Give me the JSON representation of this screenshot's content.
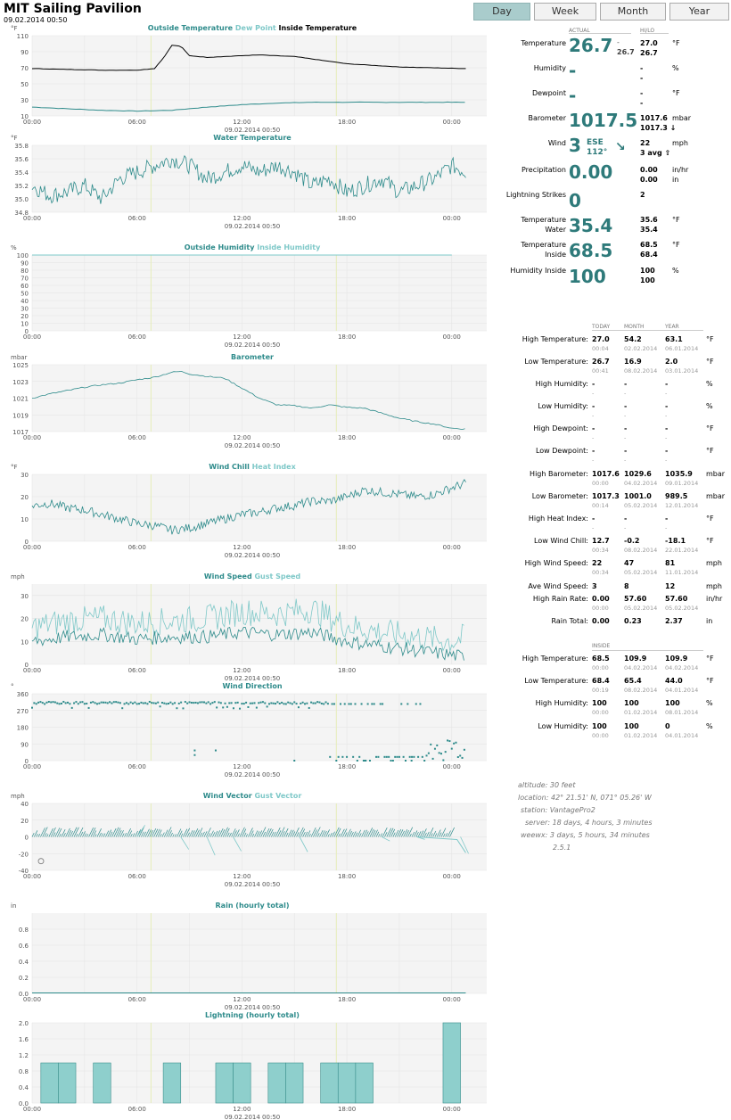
{
  "header": {
    "title": "MIT Sailing Pavilion",
    "date": "09.02.2014 00:50"
  },
  "tabs": [
    {
      "label": "Day",
      "active": true
    },
    {
      "label": "Week"
    },
    {
      "label": "Month"
    },
    {
      "label": "Year"
    }
  ],
  "colors": {
    "teal": "#2e8b8b",
    "light_teal": "#7ec8c8",
    "black_line": "#000000",
    "grid_bg": "#f4f4f4",
    "day_marker": "#e6edb9"
  },
  "x_ticks": [
    "00:00",
    "06:00",
    "12:00",
    "18:00",
    "00:00"
  ],
  "chart_timestamp": "09.02.2014 00:50",
  "chart_data": [
    {
      "type": "line",
      "title_parts": [
        {
          "text": "Outside Temperature",
          "color": "#2e8b8b"
        },
        {
          "text": "Dew Point",
          "color": "#7ec8c8"
        },
        {
          "text": "Inside Temperature",
          "color": "#000000"
        }
      ],
      "ylabel": "°F",
      "yticks": [
        10,
        30,
        50,
        70,
        90,
        110
      ],
      "ylim": [
        10,
        110
      ],
      "series": [
        {
          "name": "Outside Temperature",
          "x": [
            0,
            2,
            4,
            6,
            8,
            10,
            12,
            14,
            16,
            18,
            20,
            22,
            24.8
          ],
          "y": [
            21,
            19,
            17,
            16,
            17,
            21,
            24,
            26,
            27,
            27,
            27,
            27,
            27
          ]
        },
        {
          "name": "Inside Temperature",
          "x": [
            0,
            2,
            4,
            6,
            7,
            7.5,
            8,
            8.5,
            9,
            10,
            12,
            13,
            15,
            18,
            21,
            24.8
          ],
          "y": [
            69,
            68,
            67,
            67,
            69,
            82,
            98,
            97,
            85,
            83,
            85,
            86,
            84,
            75,
            71,
            69
          ]
        }
      ]
    },
    {
      "type": "line",
      "title_parts": [
        {
          "text": "Water Temperature",
          "color": "#2e8b8b"
        }
      ],
      "ylabel": "°F",
      "yticks": [
        34.8,
        35.0,
        35.2,
        35.4,
        35.6,
        35.8
      ],
      "ylim": [
        34.8,
        35.8
      ],
      "series": [
        {
          "name": "Water Temperature",
          "x": [
            0,
            1,
            2,
            3,
            4,
            5,
            6,
            7,
            8,
            9,
            10,
            11,
            12,
            13,
            14,
            15,
            16,
            17,
            18,
            19,
            20,
            21,
            22,
            23,
            24,
            24.8
          ],
          "y": [
            35.2,
            35.05,
            35.1,
            35.2,
            35.0,
            35.3,
            35.4,
            35.5,
            35.6,
            35.5,
            35.3,
            35.4,
            35.5,
            35.4,
            35.5,
            35.4,
            35.2,
            35.3,
            35.1,
            35.2,
            35.3,
            35.1,
            35.2,
            35.3,
            35.5,
            35.4
          ]
        }
      ]
    },
    {
      "type": "line",
      "title_parts": [
        {
          "text": "Outside Humidity",
          "color": "#2e8b8b"
        },
        {
          "text": "Inside Humidity",
          "color": "#7ec8c8"
        }
      ],
      "ylabel": "%",
      "yticks": [
        0,
        10,
        20,
        30,
        40,
        50,
        60,
        70,
        80,
        90,
        100
      ],
      "ylim": [
        0,
        100
      ],
      "series": [
        {
          "name": "Inside Humidity",
          "x": [
            0,
            24.8
          ],
          "y": [
            100,
            100
          ]
        }
      ]
    },
    {
      "type": "line",
      "title_parts": [
        {
          "text": "Barometer",
          "color": "#2e8b8b"
        }
      ],
      "ylabel": "mbar",
      "yticks": [
        1017,
        1019,
        1021,
        1023,
        1025
      ],
      "ylim": [
        1017,
        1025
      ],
      "series": [
        {
          "name": "Barometer",
          "x": [
            0,
            1,
            2,
            3,
            4,
            5,
            6,
            7,
            8,
            8.5,
            9,
            10,
            11,
            12,
            13,
            14,
            15,
            16,
            17,
            18,
            19,
            20,
            21,
            22,
            23,
            24,
            24.8
          ],
          "y": [
            1021.0,
            1021.5,
            1021.9,
            1022.3,
            1022.6,
            1022.8,
            1023.2,
            1023.5,
            1024.1,
            1024.2,
            1023.9,
            1023.6,
            1023.4,
            1022.2,
            1021.0,
            1020.2,
            1020.1,
            1019.8,
            1020.2,
            1019.9,
            1019.8,
            1019.2,
            1018.6,
            1018.2,
            1017.9,
            1017.4,
            1017.3
          ]
        }
      ]
    },
    {
      "type": "line",
      "title_parts": [
        {
          "text": "Wind Chill",
          "color": "#2e8b8b"
        },
        {
          "text": "Heat Index",
          "color": "#7ec8c8"
        }
      ],
      "ylabel": "°F",
      "yticks": [
        0,
        10,
        20,
        30
      ],
      "ylim": [
        0,
        30
      ],
      "series": [
        {
          "name": "Wind Chill",
          "x": [
            0,
            1,
            2,
            3,
            4,
            5,
            6,
            7,
            8,
            9,
            10,
            11,
            12,
            13,
            14,
            15,
            16,
            17,
            18,
            19,
            20,
            21,
            22,
            23,
            24,
            24.8
          ],
          "y": [
            16,
            17,
            15,
            14,
            12,
            10,
            8,
            7,
            5,
            6,
            8,
            10,
            12,
            13,
            15,
            16,
            18,
            18,
            20,
            23,
            22,
            21,
            20,
            21,
            24,
            26
          ]
        }
      ]
    },
    {
      "type": "line",
      "title_parts": [
        {
          "text": "Wind Speed",
          "color": "#2e8b8b"
        },
        {
          "text": "Gust Speed",
          "color": "#7ec8c8"
        }
      ],
      "ylabel": "mph",
      "yticks": [
        0,
        10,
        20,
        30
      ],
      "ylim": [
        0,
        35
      ],
      "series": [
        {
          "name": "Wind Speed",
          "x": [
            0,
            2,
            4,
            6,
            8,
            10,
            12,
            14,
            16,
            18,
            20,
            22,
            24,
            24.8
          ],
          "y": [
            10,
            12,
            13,
            11,
            12,
            12,
            14,
            13,
            14,
            10,
            8,
            6,
            4,
            3
          ]
        },
        {
          "name": "Gust Speed",
          "x": [
            0,
            2,
            4,
            6,
            8,
            10,
            12,
            14,
            16,
            18,
            20,
            22,
            24,
            24.8
          ],
          "y": [
            16,
            19,
            20,
            18,
            19,
            20,
            23,
            22,
            24,
            17,
            14,
            12,
            10,
            12
          ]
        }
      ]
    },
    {
      "type": "scatter",
      "title_parts": [
        {
          "text": "Wind Direction",
          "color": "#2e8b8b"
        }
      ],
      "ylabel": "°",
      "yticks": [
        0,
        90,
        180,
        270,
        360
      ],
      "ylim": [
        0,
        360
      ]
    },
    {
      "type": "line",
      "title_parts": [
        {
          "text": "Wind Vector",
          "color": "#2e8b8b"
        },
        {
          "text": "Gust Vector",
          "color": "#7ec8c8"
        }
      ],
      "ylabel": "mph",
      "yticks": [
        -40,
        -20,
        0,
        20,
        40
      ],
      "ylim": [
        -40,
        40
      ]
    },
    {
      "type": "line",
      "title_parts": [
        {
          "text": "Rain (hourly total)",
          "color": "#2e8b8b"
        }
      ],
      "ylabel": "in",
      "yticks": [
        0.0,
        0.2,
        0.4,
        0.6,
        0.8
      ],
      "ylim": [
        0,
        1.0
      ]
    },
    {
      "type": "bar",
      "title_parts": [
        {
          "text": "Lightning (hourly total)",
          "color": "#2e8b8b"
        }
      ],
      "ylabel": "",
      "yticks": [
        0.0,
        0.4,
        0.8,
        1.2,
        1.6,
        2.0
      ],
      "ylim": [
        0,
        2.0
      ],
      "bars": [
        {
          "hour": 1,
          "value": 1
        },
        {
          "hour": 2,
          "value": 1
        },
        {
          "hour": 4,
          "value": 1
        },
        {
          "hour": 8,
          "value": 1
        },
        {
          "hour": 11,
          "value": 1
        },
        {
          "hour": 12,
          "value": 1
        },
        {
          "hour": 14,
          "value": 1
        },
        {
          "hour": 15,
          "value": 1
        },
        {
          "hour": 17,
          "value": 1
        },
        {
          "hour": 18,
          "value": 1
        },
        {
          "hour": 19,
          "value": 1
        },
        {
          "hour": 24,
          "value": 2
        }
      ]
    }
  ],
  "current": {
    "hdr_actual": "ACTUAL",
    "hdr_hilo": "HI/LO",
    "rows": [
      {
        "label": "Temperature",
        "value": "26.7",
        "extra": "-",
        "extra2": "26.7",
        "hi": "27.0",
        "lo": "26.7",
        "unit": "°F"
      },
      {
        "label": "Humidity",
        "value": "-",
        "hi": "-",
        "lo": "-",
        "unit": "%"
      },
      {
        "label": "Dewpoint",
        "value": "-",
        "hi": "-",
        "lo": "-",
        "unit": "°F"
      },
      {
        "label": "Barometer",
        "value": "1017.5",
        "hi": "1017.6",
        "lo": "1017.3 ↓",
        "unit": "mbar"
      },
      {
        "label": "Wind",
        "value": "3",
        "dir": "ESE",
        "deg": "112°",
        "hi": "22",
        "lo": "3 avg  ⇧",
        "unit": "mph"
      },
      {
        "label": "Precipitation",
        "value": "0.00",
        "hi": "0.00",
        "lo": "0.00",
        "unit": "in/hr",
        "unit2": "in"
      },
      {
        "label": "Lightning Strikes",
        "value": "0",
        "hi": "2",
        "lo": "",
        "unit": ""
      },
      {
        "label": "Temperature Water",
        "value": "35.4",
        "hi": "35.6",
        "lo": "35.4",
        "unit": "°F"
      },
      {
        "label": "Temperature Inside",
        "value": "68.5",
        "hi": "68.5",
        "lo": "68.4",
        "unit": "°F"
      },
      {
        "label": "Humidity Inside",
        "value": "100",
        "hi": "100",
        "lo": "100",
        "unit": "%"
      }
    ]
  },
  "stats": {
    "headers": [
      "TODAY",
      "MONTH",
      "YEAR"
    ],
    "rows": [
      {
        "label": "High Temperature:",
        "today": "27.0",
        "today_t": "00:04",
        "month": "54.2",
        "month_t": "02.02.2014",
        "year": "63.1",
        "year_t": "06.01.2014",
        "unit": "°F"
      },
      {
        "label": "Low Temperature:",
        "today": "26.7",
        "today_t": "00:41",
        "month": "16.9",
        "month_t": "08.02.2014",
        "year": "2.0",
        "year_t": "03.01.2014",
        "unit": "°F"
      },
      {
        "label": "High Humidity:",
        "today": "-",
        "today_t": "-",
        "month": "-",
        "month_t": "-",
        "year": "-",
        "year_t": "-",
        "unit": "%"
      },
      {
        "label": "Low Humidity:",
        "today": "-",
        "today_t": "-",
        "month": "-",
        "month_t": "-",
        "year": "-",
        "year_t": "-",
        "unit": "%"
      },
      {
        "label": "High Dewpoint:",
        "today": "-",
        "today_t": "-",
        "month": "-",
        "month_t": "-",
        "year": "-",
        "year_t": "-",
        "unit": "°F"
      },
      {
        "label": "Low Dewpoint:",
        "today": "-",
        "today_t": "-",
        "month": "-",
        "month_t": "-",
        "year": "-",
        "year_t": "-",
        "unit": "°F"
      },
      {
        "label": "High Barometer:",
        "today": "1017.6",
        "today_t": "00:00",
        "month": "1029.6",
        "month_t": "04.02.2014",
        "year": "1035.9",
        "year_t": "09.01.2014",
        "unit": "mbar"
      },
      {
        "label": "Low Barometer:",
        "today": "1017.3",
        "today_t": "00:14",
        "month": "1001.0",
        "month_t": "05.02.2014",
        "year": "989.5",
        "year_t": "12.01.2014",
        "unit": "mbar"
      },
      {
        "label": "High Heat Index:",
        "today": "-",
        "today_t": "-",
        "month": "-",
        "month_t": "-",
        "year": "-",
        "year_t": "-",
        "unit": "°F"
      },
      {
        "label": "Low Wind Chill:",
        "today": "12.7",
        "today_t": "00:34",
        "month": "-0.2",
        "month_t": "08.02.2014",
        "year": "-18.1",
        "year_t": "22.01.2014",
        "unit": "°F"
      },
      {
        "label": "High Wind Speed:",
        "today": "22",
        "today_t": "00:34",
        "month": "47",
        "month_t": "05.02.2014",
        "year": "81",
        "year_t": "11.01.2014",
        "unit": "mph"
      },
      {
        "label": "Ave Wind Speed:",
        "today": "3",
        "today_t": "",
        "month": "8",
        "month_t": "",
        "year": "12",
        "year_t": "",
        "unit": "mph"
      },
      {
        "label": "High Rain Rate:",
        "today": "0.00",
        "today_t": "00:00",
        "month": "57.60",
        "month_t": "05.02.2014",
        "year": "57.60",
        "year_t": "05.02.2014",
        "unit": "in/hr"
      },
      {
        "label": "Rain Total:",
        "today": "0.00",
        "today_t": "",
        "month": "0.23",
        "month_t": "",
        "year": "2.37",
        "year_t": "",
        "unit": "in"
      }
    ]
  },
  "inside": {
    "header": "INSIDE",
    "rows": [
      {
        "label": "High Temperature:",
        "today": "68.5",
        "today_t": "00:00",
        "month": "109.9",
        "month_t": "04.02.2014",
        "year": "109.9",
        "year_t": "04.02.2014",
        "unit": "°F"
      },
      {
        "label": "Low Temperature:",
        "today": "68.4",
        "today_t": "00:19",
        "month": "65.4",
        "month_t": "08.02.2014",
        "year": "44.0",
        "year_t": "04.01.2014",
        "unit": "°F"
      },
      {
        "label": "High Humidity:",
        "today": "100",
        "today_t": "00:00",
        "month": "100",
        "month_t": "01.02.2014",
        "year": "100",
        "year_t": "08.01.2014",
        "unit": "%"
      },
      {
        "label": "Low Humidity:",
        "today": "100",
        "today_t": "00:00",
        "month": "100",
        "month_t": "01.02.2014",
        "year": "0",
        "year_t": "04.01.2014",
        "unit": "%"
      }
    ]
  },
  "station_info": [
    "altitude: 30 feet",
    "location: 42° 21.51' N, 071° 05.26' W",
    "station: VantagePro2",
    "server: 18 days, 4 hours, 3 minutes",
    "weewx: 3 days, 5 hours, 34 minutes",
    "2.5.1"
  ]
}
